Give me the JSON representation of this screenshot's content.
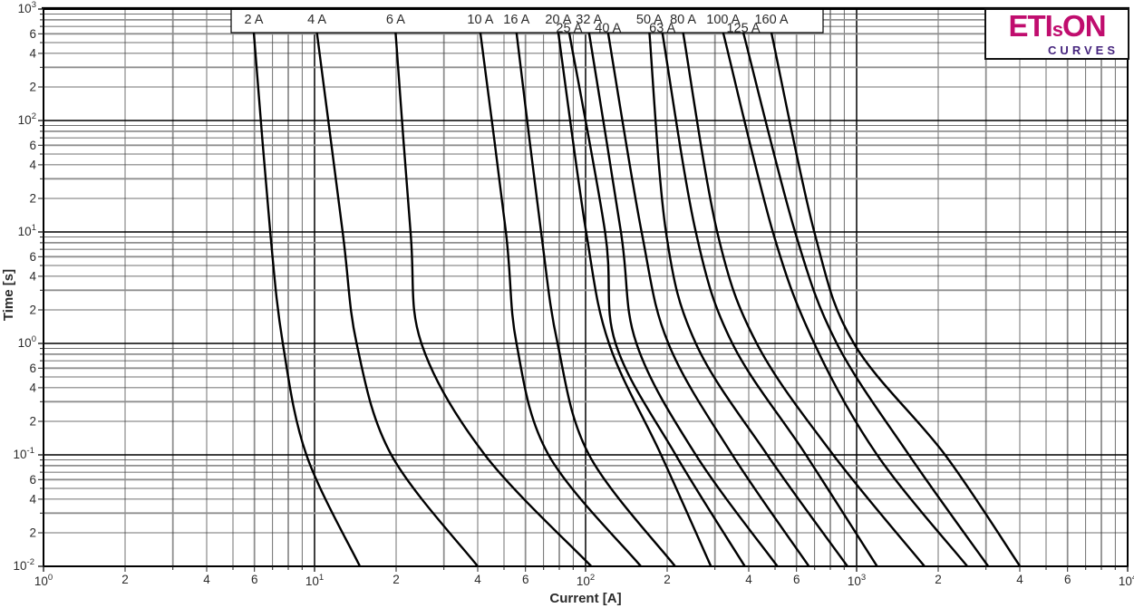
{
  "logo": {
    "brand_eti": "ETI",
    "brand_s": "s",
    "brand_on": "ON",
    "brand_line2": "curves",
    "color_main": "#c00d6e",
    "color_line2": "#46257e"
  },
  "chart_data": {
    "type": "line",
    "title": "",
    "xlabel": "Current [A]",
    "ylabel": "Time [s]",
    "x_scale": "log",
    "y_scale": "log",
    "xlim": [
      1,
      10000
    ],
    "ylim": [
      0.01,
      1000
    ],
    "grid": "on",
    "x_decade_exponents": [
      0,
      1,
      2,
      3,
      4
    ],
    "y_decade_exponents": [
      3,
      2,
      1,
      0,
      -1,
      -2
    ],
    "x_minor_tick_labels": [
      2,
      4,
      6
    ],
    "y_minor_tick_labels": [
      6,
      4,
      2
    ],
    "curve_color": "#000000",
    "legend_position": "top-strip",
    "times_s": [
      615,
      10,
      1,
      0.1,
      0.01
    ],
    "series": [
      {
        "label": "2 A",
        "rating_A": 2,
        "label_row": 1,
        "amps_at_times": [
          5.97,
          6.86,
          7.64,
          9.33,
          14.7
        ]
      },
      {
        "label": "4 A",
        "rating_A": 4,
        "label_row": 1,
        "amps_at_times": [
          10.2,
          12.7,
          14.3,
          19.2,
          40.0
        ]
      },
      {
        "label": "6 A",
        "rating_A": 6,
        "label_row": 1,
        "amps_at_times": [
          19.9,
          22.6,
          24.8,
          42.5,
          105
        ]
      },
      {
        "label": "10 A",
        "rating_A": 10,
        "label_row": 1,
        "amps_at_times": [
          40.9,
          50.8,
          55.6,
          73.0,
          160
        ]
      },
      {
        "label": "16 A",
        "rating_A": 16,
        "label_row": 1,
        "amps_at_times": [
          55.6,
          68.5,
          78.8,
          103,
          214
        ]
      },
      {
        "label": "20 A",
        "rating_A": 20,
        "label_row": 1,
        "amps_at_times": [
          79.3,
          100.5,
          122,
          190,
          290
        ]
      },
      {
        "label": "25 A",
        "rating_A": 25,
        "label_row": 2,
        "amps_at_times": [
          87.0,
          118,
          129,
          215,
          387
        ]
      },
      {
        "label": "32 A",
        "rating_A": 32,
        "label_row": 1,
        "amps_at_times": [
          103,
          135,
          154,
          255,
          510
        ]
      },
      {
        "label": "40 A",
        "rating_A": 40,
        "label_row": 2,
        "amps_at_times": [
          121,
          161,
          202,
          348,
          667
        ]
      },
      {
        "label": "50 A",
        "rating_A": 50,
        "label_row": 1,
        "amps_at_times": [
          172,
          198,
          255,
          468,
          925
        ]
      },
      {
        "label": "63 A",
        "rating_A": 63,
        "label_row": 2,
        "amps_at_times": [
          192,
          255,
          348,
          650,
          1190
        ]
      },
      {
        "label": "80 A",
        "rating_A": 80,
        "label_row": 1,
        "amps_at_times": [
          229,
          306,
          428,
          820,
          1780
        ]
      },
      {
        "label": "100 A",
        "rating_A": 100,
        "label_row": 1,
        "amps_at_times": [
          322,
          491,
          698,
          1190,
          2560
        ]
      },
      {
        "label": "125 A",
        "rating_A": 125,
        "label_row": 2,
        "amps_at_times": [
          382,
          593,
          845,
          1560,
          3060
        ]
      },
      {
        "label": "160 A",
        "rating_A": 160,
        "label_row": 1,
        "amps_at_times": [
          485,
          698,
          977,
          2120,
          4010
        ]
      }
    ]
  }
}
